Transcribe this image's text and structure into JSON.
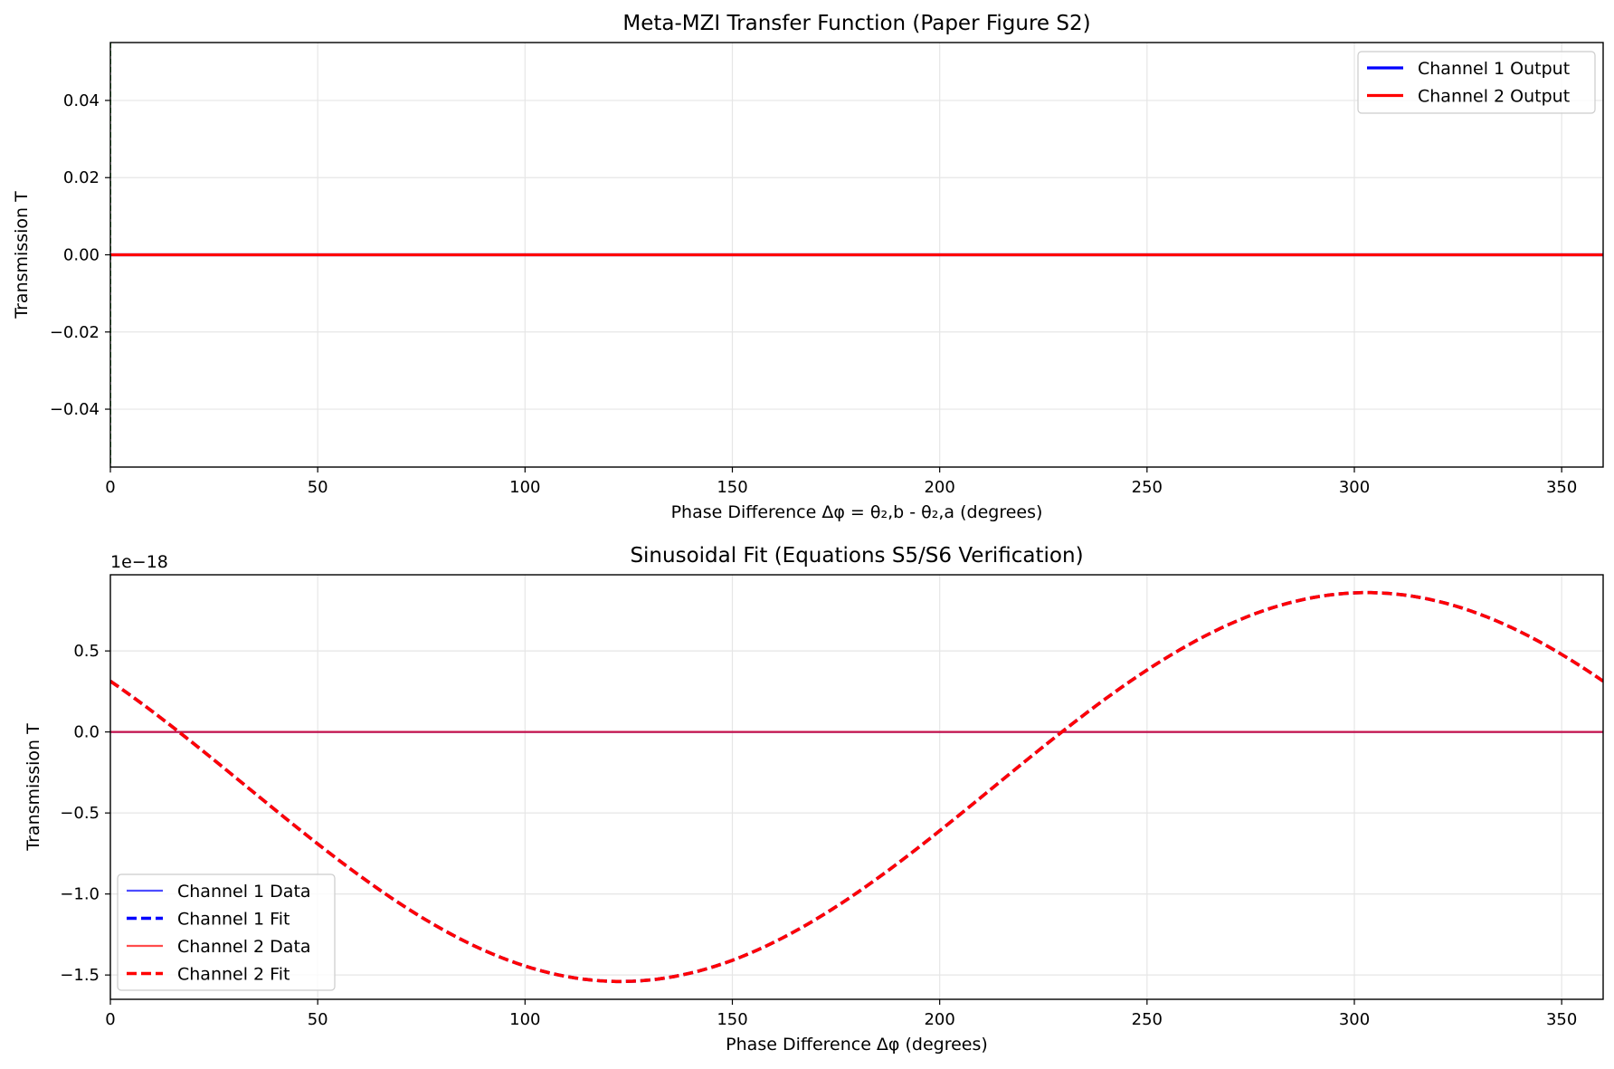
{
  "chart_data": [
    {
      "type": "line",
      "title": "Meta-MZI Transfer Function (Paper Figure S2)",
      "xlabel": "Phase Difference Δφ = θ₂,b - θ₂,a (degrees)",
      "ylabel": "Transmission T",
      "xlim": [
        0,
        360
      ],
      "ylim": [
        -0.055,
        0.055
      ],
      "xticks": [
        0,
        50,
        100,
        150,
        200,
        250,
        300,
        350
      ],
      "xtick_labels": [
        "0",
        "50",
        "100",
        "150",
        "200",
        "250",
        "300",
        "350"
      ],
      "yticks": [
        -0.04,
        -0.02,
        0.0,
        0.02,
        0.04
      ],
      "ytick_labels": [
        "−0.04",
        "−0.02",
        "0.00",
        "0.02",
        "0.04"
      ],
      "grid": true,
      "legend_position": "top-right",
      "series": [
        {
          "name": "Channel 1 Output",
          "color": "#0000ff",
          "style": "solid",
          "x": [
            0,
            360
          ],
          "y": [
            0,
            0
          ]
        },
        {
          "name": "Channel 2 Output",
          "color": "#ff0000",
          "style": "solid",
          "x": [
            0,
            360
          ],
          "y": [
            0,
            0
          ]
        }
      ],
      "vlines": [
        {
          "x": 0,
          "color": "#008000",
          "style": "dashed"
        }
      ]
    },
    {
      "type": "line",
      "title": "Sinusoidal Fit (Equations S5/S6 Verification)",
      "xlabel": "Phase Difference Δφ (degrees)",
      "ylabel": "Transmission T",
      "offset_text": "1e−18",
      "xlim": [
        0,
        360
      ],
      "ylim": [
        -1.65,
        0.97
      ],
      "xticks": [
        0,
        50,
        100,
        150,
        200,
        250,
        300,
        350
      ],
      "xtick_labels": [
        "0",
        "50",
        "100",
        "150",
        "200",
        "250",
        "300",
        "350"
      ],
      "yticks": [
        -1.5,
        -1.0,
        -0.5,
        0.0,
        0.5
      ],
      "ytick_labels": [
        "−1.5",
        "−1.0",
        "−0.5",
        "0.0",
        "0.5"
      ],
      "grid": true,
      "legend_position": "bottom-left",
      "series": [
        {
          "name": "Channel 1 Data",
          "color": "#0000ff",
          "style": "solid",
          "alpha": 0.7,
          "x": [
            0,
            360
          ],
          "y": [
            0,
            0
          ]
        },
        {
          "name": "Channel 1 Fit",
          "color": "#0000ff",
          "style": "dashed",
          "fit": {
            "mean": -0.34,
            "amplitude": 1.2,
            "phase_deg": 213,
            "period_deg": 360
          }
        },
        {
          "name": "Channel 2 Data",
          "color": "#ff0000",
          "style": "solid",
          "alpha": 0.7,
          "x": [
            0,
            360
          ],
          "y": [
            0,
            0
          ]
        },
        {
          "name": "Channel 2 Fit",
          "color": "#ff0000",
          "style": "dashed",
          "fit": {
            "mean": -0.34,
            "amplitude": 1.2,
            "phase_deg": 213,
            "period_deg": 360
          }
        }
      ]
    }
  ]
}
